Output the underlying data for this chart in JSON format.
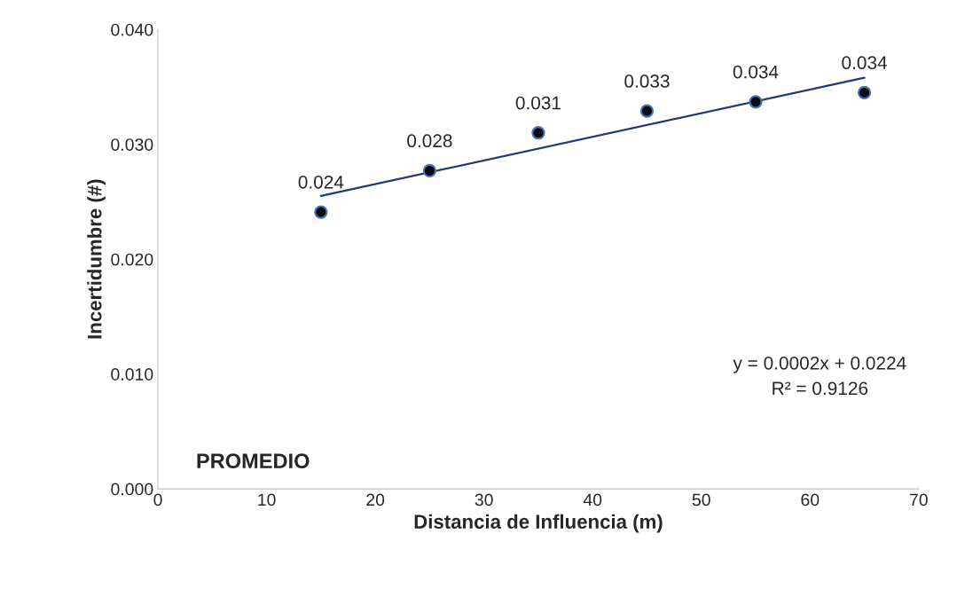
{
  "chart_data": {
    "type": "scatter",
    "xlabel": "Distancia de Influencia (m)",
    "ylabel": "Incertidumbre (#)",
    "x": [
      15,
      25,
      35,
      45,
      55,
      65
    ],
    "series": [
      {
        "color": "#0a0a0a",
        "marker": "circle",
        "values": [
          0.0241,
          0.0277,
          0.031,
          0.0329,
          0.0337,
          0.0345
        ],
        "value_labels": [
          "0.024",
          "0.028",
          "0.031",
          "0.033",
          "0.034",
          "0.034"
        ]
      },
      {
        "type": "line",
        "color": "#1f3a7a",
        "x": [
          15,
          65
        ],
        "values": [
          0.0255,
          0.0358
        ]
      }
    ],
    "xlim": [
      0,
      70
    ],
    "xticks": [
      0,
      10,
      20,
      30,
      40,
      50,
      60,
      70
    ],
    "ylim": [
      0,
      0.04
    ],
    "yticks": [
      {
        "value": 0,
        "label": "0.000"
      },
      {
        "value": 0.01,
        "label": "0.010"
      },
      {
        "value": 0.02,
        "label": "0.020"
      },
      {
        "value": 0.03,
        "label": "0.030"
      },
      {
        "value": 0.04,
        "label": "0.040"
      }
    ],
    "grid": false,
    "legend": false,
    "annotations": [
      "y = 0.0002x + 0.0224",
      "R² = 0.9126",
      "PROMEDIO"
    ]
  }
}
